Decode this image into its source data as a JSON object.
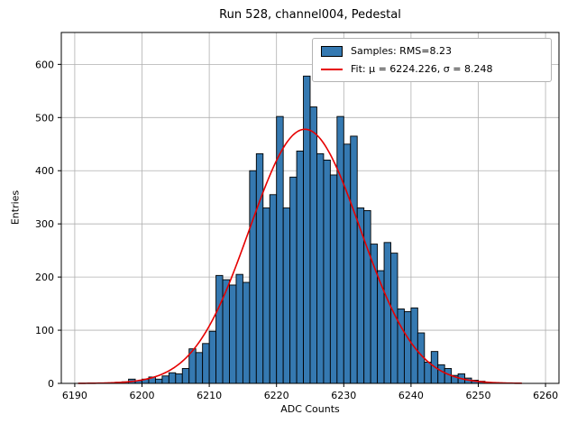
{
  "chart_data": {
    "type": "bar",
    "title": "Run 528, channel004, Pedestal",
    "xlabel": "ADC Counts",
    "ylabel": "Entries",
    "xlim": [
      6188,
      6262
    ],
    "ylim": [
      0,
      660
    ],
    "x_ticks": [
      6190,
      6200,
      6210,
      6220,
      6230,
      6240,
      6250,
      6260
    ],
    "y_ticks": [
      0,
      100,
      200,
      300,
      400,
      500,
      600
    ],
    "grid": true,
    "legend_position": "upper right",
    "bin_start": 6196,
    "bin_width": 1,
    "values": [
      2,
      3,
      8,
      5,
      8,
      12,
      8,
      14,
      20,
      18,
      28,
      65,
      58,
      75,
      98,
      203,
      195,
      185,
      205,
      190,
      400,
      432,
      330,
      355,
      502,
      330,
      388,
      437,
      578,
      520,
      432,
      420,
      392,
      502,
      450,
      465,
      330,
      325,
      262,
      212,
      265,
      245,
      140,
      135,
      142,
      95,
      40,
      60,
      35,
      28,
      15,
      18,
      10,
      6,
      4
    ],
    "fit": {
      "type": "gaussian",
      "mu": 6224.226,
      "sigma": 8.248,
      "amplitude": 478,
      "range": [
        6190.5,
        6256.5
      ]
    },
    "legend": [
      "Samples: RMS=8.23",
      "Fit: μ = 6224.226, σ = 8.248"
    ],
    "colors": {
      "bar": "#3579b1",
      "bar_edge": "#000000",
      "fit": "#e60000",
      "grid": "#b0b0b0",
      "axes": "#000000"
    }
  }
}
